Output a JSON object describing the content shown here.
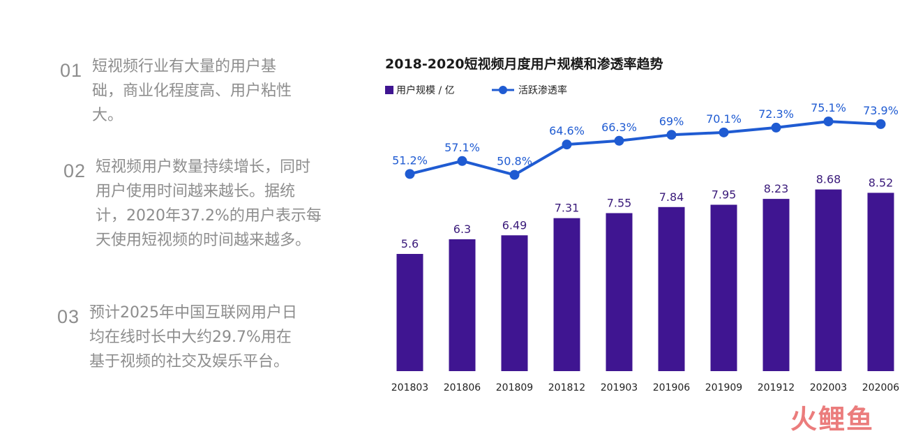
{
  "points": [
    {
      "num": "01",
      "text": "短视频行业有大量的用户基础，商业化程度高、用户粘性大。"
    },
    {
      "num": "02",
      "text": "短视频用户数量持续增长，同时用户使用时间越来越长。据统计，2020年37.2%的用户表示每天使用短视频的时间越来越多。"
    },
    {
      "num": "03",
      "text": "预计2025年中国互联网用户日均在线时长中大约29.7%用在基于视频的社交及娱乐平台。"
    }
  ],
  "chart_data": {
    "type": "bar",
    "title": "2018-2020短视频月度用户规模和渗透率趋势",
    "categories": [
      "201803",
      "201806",
      "201809",
      "201812",
      "201903",
      "201906",
      "201909",
      "201912",
      "202003",
      "202006"
    ],
    "series": [
      {
        "name": "用户规模 / 亿",
        "type": "bar",
        "color": "#3f1591",
        "values": [
          5.6,
          6.3,
          6.49,
          7.31,
          7.55,
          7.84,
          7.95,
          8.23,
          8.68,
          8.52
        ],
        "labels": [
          "5.6",
          "6.3",
          "6.49",
          "7.31",
          "7.55",
          "7.84",
          "7.95",
          "8.23",
          "8.68",
          "8.52"
        ]
      },
      {
        "name": "活跃渗透率",
        "type": "line",
        "color": "#1f5bd2",
        "values": [
          51.2,
          57.1,
          50.8,
          64.6,
          66.3,
          69,
          70.1,
          72.3,
          75.1,
          73.9
        ],
        "labels": [
          "51.2%",
          "57.1%",
          "50.8%",
          "64.6%",
          "66.3%",
          "69%",
          "70.1%",
          "72.3%",
          "75.1%",
          "73.9%"
        ]
      }
    ],
    "legend_position": "top-left",
    "grid": false
  },
  "watermark": "火鲤鱼"
}
